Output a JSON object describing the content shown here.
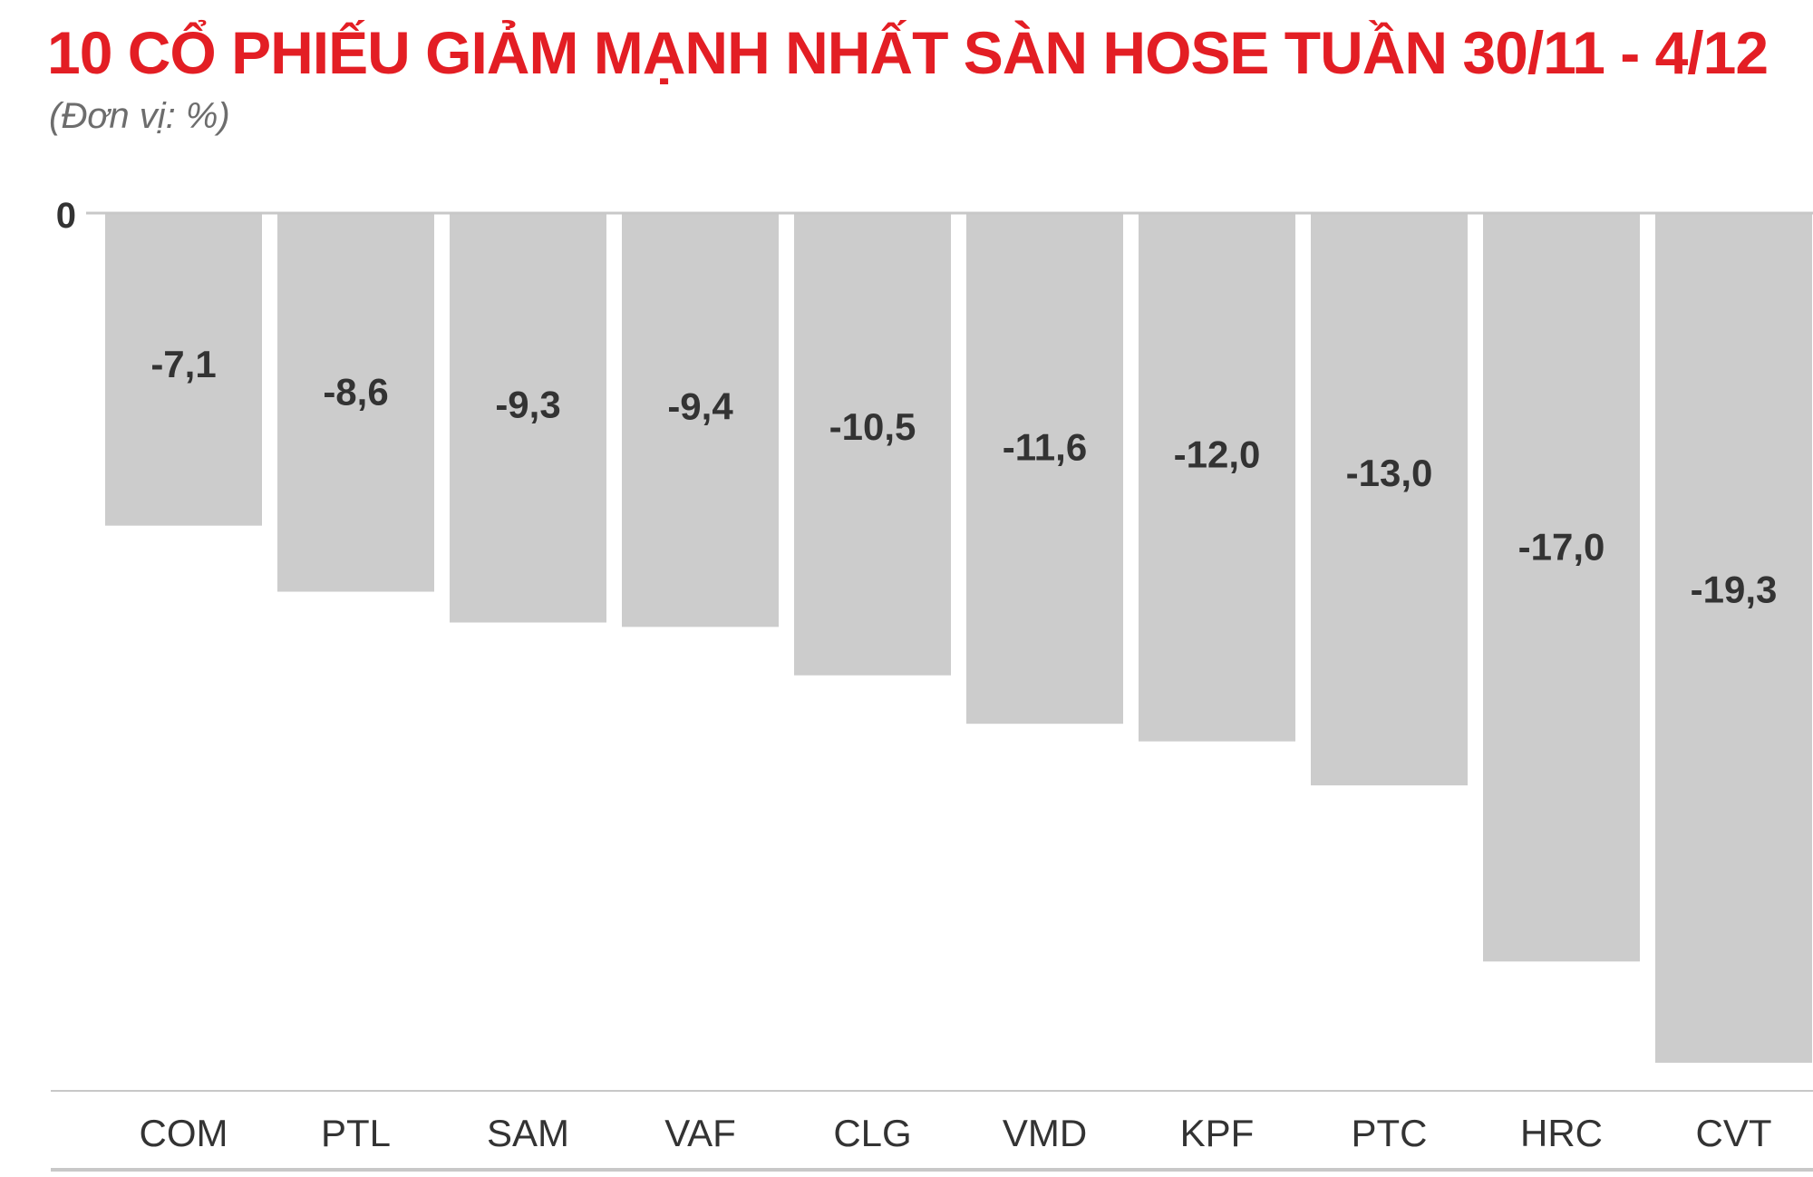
{
  "title": "10 CỔ PHIẾU GIẢM MẠNH NHẤT SÀN HOSE TUẦN 30/11 - 4/12",
  "subtitle": "(Đơn vị: %)",
  "colors": {
    "title": "#e31e24",
    "bar": "#cccccc",
    "label": "#333333",
    "axis": "#c8c8c8"
  },
  "chart_data": {
    "type": "bar",
    "categories": [
      "COM",
      "PTL",
      "SAM",
      "VAF",
      "CLG",
      "VMD",
      "KPF",
      "PTC",
      "HRC",
      "CVT"
    ],
    "values": [
      -7.1,
      -8.6,
      -9.3,
      -9.4,
      -10.5,
      -11.6,
      -12.0,
      -13.0,
      -17.0,
      -19.3
    ],
    "value_labels": [
      "-7,1",
      "-8,6",
      "-9,3",
      "-9,4",
      "-10,5",
      "-11,6",
      "-12,0",
      "-13,0",
      "-17,0",
      "-19,3"
    ],
    "y_tick_labels": [
      "0"
    ],
    "ylim": [
      -19.3,
      0
    ],
    "grid": false,
    "legend": "none"
  }
}
